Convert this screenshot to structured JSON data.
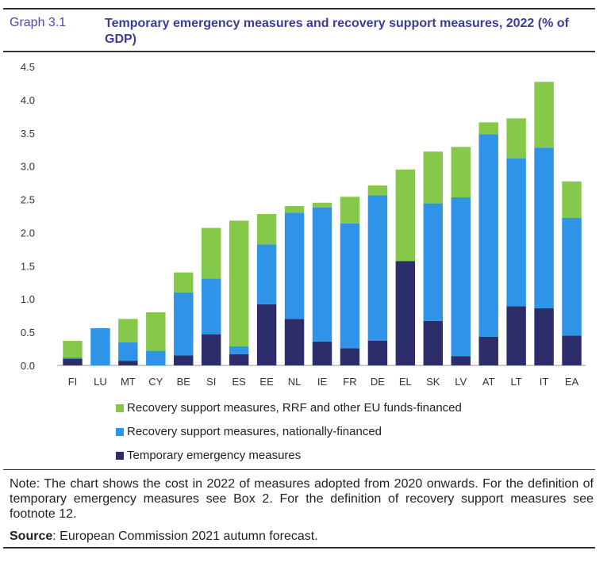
{
  "header": {
    "graph_label": "Graph 3.1",
    "title": "Temporary emergency measures and recovery support measures, 2022 (% of GDP)"
  },
  "colors": {
    "emergency": "#2e2d6b",
    "national": "#2f93e8",
    "eu": "#86c94a",
    "title": "#3b3b9b"
  },
  "chart_data": {
    "type": "bar",
    "stacked": true,
    "title": "Temporary emergency measures and recovery support measures, 2022 (% of GDP)",
    "xlabel": "",
    "ylabel": "",
    "ylim": [
      0,
      4.5
    ],
    "yticks": [
      "0.0",
      "0.5",
      "1.0",
      "1.5",
      "2.0",
      "2.5",
      "3.0",
      "3.5",
      "4.0",
      "4.5"
    ],
    "categories": [
      "FI",
      "LU",
      "MT",
      "CY",
      "BE",
      "SI",
      "ES",
      "EE",
      "NL",
      "IE",
      "FR",
      "DE",
      "EL",
      "SK",
      "LV",
      "AT",
      "LT",
      "IT",
      "EA"
    ],
    "series": [
      {
        "name": "Temporary emergency measures",
        "key": "emergency",
        "values": [
          0.1,
          0.0,
          0.07,
          0.0,
          0.15,
          0.47,
          0.17,
          0.92,
          0.7,
          0.36,
          0.26,
          0.37,
          1.57,
          0.67,
          0.14,
          0.43,
          0.89,
          0.86,
          0.45
        ]
      },
      {
        "name": "Recovery support measures, nationally-financed",
        "key": "national",
        "values": [
          0.02,
          0.56,
          0.28,
          0.22,
          0.95,
          0.84,
          0.12,
          0.9,
          1.6,
          2.02,
          1.88,
          2.19,
          0.0,
          1.77,
          2.39,
          3.05,
          2.23,
          2.42,
          1.77
        ]
      },
      {
        "name": "Recovery support measures, RRF and other EU funds-financed",
        "key": "eu",
        "values": [
          0.25,
          0.0,
          0.35,
          0.58,
          0.3,
          0.76,
          1.89,
          0.46,
          0.1,
          0.07,
          0.4,
          0.15,
          1.38,
          0.78,
          0.76,
          0.18,
          0.6,
          0.99,
          0.55
        ]
      }
    ],
    "legend": [
      "Recovery support measures, RRF and other EU funds-financed",
      "Recovery support measures, nationally-financed",
      "Temporary emergency measures"
    ]
  },
  "footer": {
    "note": "Note: The chart shows the cost in 2022 of measures adopted from 2020 onwards. For the definition of temporary emergency measures see Box 2. For the definition of recovery support measures see footnote 12.",
    "source_label": "Source",
    "source_text": ": European Commission 2021 autumn forecast."
  }
}
